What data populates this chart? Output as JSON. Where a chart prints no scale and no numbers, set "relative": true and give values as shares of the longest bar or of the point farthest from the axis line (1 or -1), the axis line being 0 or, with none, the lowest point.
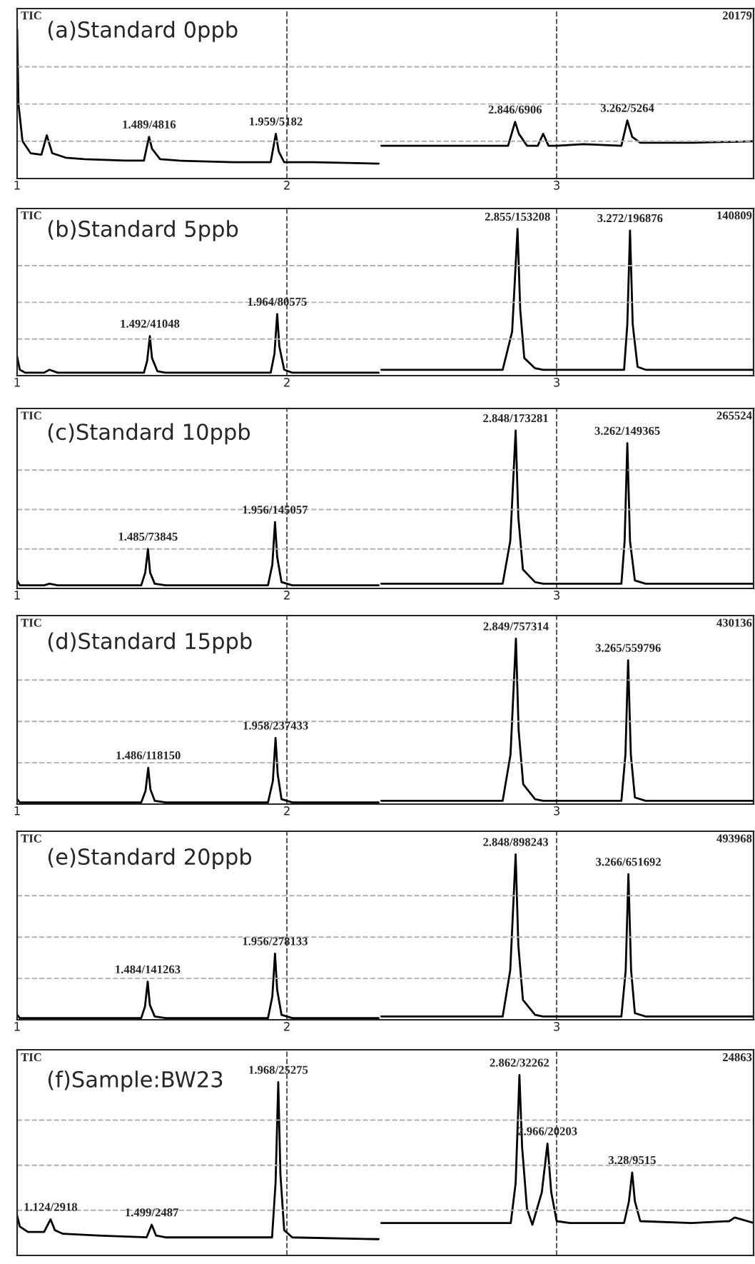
{
  "chart_data": [
    {
      "type": "line",
      "relative": true,
      "title": "(a)Standard 0ppb",
      "xlim": [
        1,
        3.73
      ],
      "xticks": [
        1,
        2,
        3
      ],
      "grid": "x",
      "line_style": "solid",
      "ref_lines": [
        {
          "axis": "y",
          "value": 0.25,
          "color": "#b0b0b0",
          "line_style": "dashed"
        },
        {
          "axis": "y",
          "value": 0.5,
          "color": "#b0b0b0",
          "line_style": "dashed"
        },
        {
          "axis": "y",
          "value": 0.75,
          "color": "#b0b0b0",
          "line_style": "dashed"
        }
      ],
      "annotations": [
        "TIC",
        "20179",
        {
          "text": "1.489/4816",
          "x": 1.489,
          "y": 0.28
        },
        {
          "text": "1.959/5182",
          "x": 1.959,
          "y": 0.3
        },
        {
          "text": "2.846/6906",
          "x": 2.846,
          "y": 0.38
        },
        {
          "text": "3.262/5264",
          "x": 3.262,
          "y": 0.39
        }
      ],
      "series": [
        {
          "color": "#000000",
          "x": [
            1.0,
            1.005,
            1.02,
            1.05,
            1.09,
            1.11,
            1.13,
            1.18,
            1.25,
            1.4,
            1.47,
            1.489,
            1.5,
            1.53,
            1.6,
            1.8,
            1.94,
            1.959,
            1.97,
            1.99,
            2.1,
            2.34,
            2.345,
            2.35,
            2.5,
            2.7,
            2.82,
            2.846,
            2.86,
            2.89,
            2.93,
            2.95,
            2.97,
            3.0,
            3.1,
            3.24,
            3.262,
            3.28,
            3.31,
            3.5,
            3.73
          ],
          "values": [
            1.0,
            0.5,
            0.25,
            0.17,
            0.16,
            0.29,
            0.17,
            0.14,
            0.13,
            0.12,
            0.12,
            0.28,
            0.2,
            0.13,
            0.12,
            0.11,
            0.11,
            0.3,
            0.18,
            0.11,
            0.11,
            0.1,
            null,
            0.22,
            0.22,
            0.22,
            0.22,
            0.38,
            0.3,
            0.22,
            0.22,
            0.3,
            0.22,
            0.22,
            0.23,
            0.22,
            0.39,
            0.28,
            0.24,
            0.24,
            0.25
          ]
        }
      ]
    },
    {
      "type": "line",
      "relative": true,
      "title": "(b)Standard 5ppb",
      "xlim": [
        1,
        3.73
      ],
      "xticks": [
        1,
        2,
        3
      ],
      "grid": "x",
      "line_style": "solid",
      "ref_lines": [
        {
          "axis": "y",
          "value": 0.25,
          "color": "#b0b0b0",
          "line_style": "dashed"
        },
        {
          "axis": "y",
          "value": 0.5,
          "color": "#b0b0b0",
          "line_style": "dashed"
        },
        {
          "axis": "y",
          "value": 0.75,
          "color": "#b0b0b0",
          "line_style": "dashed"
        }
      ],
      "annotations": [
        "TIC",
        "140809",
        {
          "text": "1.492/41048",
          "x": 1.492,
          "y": 0.27
        },
        {
          "text": "1.964/80575",
          "x": 1.964,
          "y": 0.42
        },
        {
          "text": "2.855/153208",
          "x": 2.855,
          "y": 1.0
        },
        {
          "text": "3.272/196876",
          "x": 3.272,
          "y": 0.99
        }
      ],
      "series": [
        {
          "color": "#000000",
          "x": [
            1.0,
            1.01,
            1.03,
            1.1,
            1.12,
            1.15,
            1.47,
            1.482,
            1.492,
            1.5,
            1.52,
            1.55,
            1.94,
            1.954,
            1.964,
            1.972,
            1.99,
            2.02,
            2.34,
            2.345,
            2.35,
            2.8,
            2.835,
            2.855,
            2.865,
            2.88,
            2.92,
            2.95,
            3.25,
            3.262,
            3.272,
            3.282,
            3.3,
            3.33,
            3.73
          ],
          "values": [
            0.13,
            0.04,
            0.02,
            0.02,
            0.04,
            0.02,
            0.02,
            0.1,
            0.27,
            0.12,
            0.03,
            0.02,
            0.02,
            0.15,
            0.42,
            0.2,
            0.04,
            0.02,
            0.02,
            null,
            0.04,
            0.04,
            0.3,
            1.0,
            0.45,
            0.12,
            0.05,
            0.04,
            0.04,
            0.35,
            0.99,
            0.35,
            0.06,
            0.04,
            0.04
          ]
        }
      ]
    },
    {
      "type": "line",
      "relative": true,
      "title": "(c)Standard 10ppb",
      "xlim": [
        1,
        3.73
      ],
      "xticks": [
        1,
        2,
        3
      ],
      "grid": "x",
      "line_style": "solid",
      "ref_lines": [
        {
          "axis": "y",
          "value": 0.25,
          "color": "#b0b0b0",
          "line_style": "dashed"
        },
        {
          "axis": "y",
          "value": 0.5,
          "color": "#b0b0b0",
          "line_style": "dashed"
        },
        {
          "axis": "y",
          "value": 0.75,
          "color": "#b0b0b0",
          "line_style": "dashed"
        }
      ],
      "annotations": [
        "TIC",
        "265524",
        {
          "text": "1.485/73845",
          "x": 1.485,
          "y": 0.25
        },
        {
          "text": "1.956/145057",
          "x": 1.956,
          "y": 0.42
        },
        {
          "text": "2.848/173281",
          "x": 2.848,
          "y": 1.0
        },
        {
          "text": "3.262/149365",
          "x": 3.262,
          "y": 0.92
        }
      ],
      "series": [
        {
          "color": "#000000",
          "x": [
            1.0,
            1.01,
            1.03,
            1.1,
            1.12,
            1.15,
            1.46,
            1.475,
            1.485,
            1.493,
            1.51,
            1.55,
            1.93,
            1.946,
            1.956,
            1.964,
            1.98,
            2.02,
            2.34,
            2.345,
            2.35,
            2.8,
            2.828,
            2.848,
            2.858,
            2.875,
            2.92,
            2.95,
            3.24,
            3.252,
            3.262,
            3.272,
            3.29,
            3.33,
            3.73
          ],
          "values": [
            0.05,
            0.02,
            0.02,
            0.02,
            0.03,
            0.02,
            0.02,
            0.1,
            0.25,
            0.1,
            0.03,
            0.02,
            0.02,
            0.15,
            0.42,
            0.2,
            0.04,
            0.02,
            0.02,
            null,
            0.03,
            0.03,
            0.3,
            1.0,
            0.45,
            0.12,
            0.04,
            0.03,
            0.03,
            0.3,
            0.92,
            0.3,
            0.05,
            0.03,
            0.03
          ]
        }
      ]
    },
    {
      "type": "line",
      "relative": true,
      "title": "(d)Standard 15ppb",
      "xlim": [
        1,
        3.73
      ],
      "xticks": [
        1,
        2,
        3
      ],
      "grid": "x",
      "line_style": "solid",
      "ref_lines": [
        {
          "axis": "y",
          "value": 0.25,
          "color": "#b0b0b0",
          "line_style": "dashed"
        },
        {
          "axis": "y",
          "value": 0.5,
          "color": "#b0b0b0",
          "line_style": "dashed"
        },
        {
          "axis": "y",
          "value": 0.75,
          "color": "#b0b0b0",
          "line_style": "dashed"
        }
      ],
      "annotations": [
        "TIC",
        "430136",
        {
          "text": "1.486/118150",
          "x": 1.486,
          "y": 0.22
        },
        {
          "text": "1.958/237433",
          "x": 1.958,
          "y": 0.4
        },
        {
          "text": "2.849/757314",
          "x": 2.849,
          "y": 1.0
        },
        {
          "text": "3.265/559796",
          "x": 3.265,
          "y": 0.87
        }
      ],
      "series": [
        {
          "color": "#000000",
          "x": [
            1.0,
            1.01,
            1.03,
            1.1,
            1.12,
            1.15,
            1.46,
            1.476,
            1.486,
            1.494,
            1.51,
            1.55,
            1.93,
            1.948,
            1.958,
            1.966,
            1.98,
            2.02,
            2.34,
            2.345,
            2.35,
            2.8,
            2.829,
            2.849,
            2.859,
            2.876,
            2.92,
            2.95,
            3.24,
            3.255,
            3.265,
            3.275,
            3.29,
            3.33,
            3.73
          ],
          "values": [
            0.03,
            0.01,
            0.01,
            0.01,
            0.01,
            0.01,
            0.01,
            0.08,
            0.22,
            0.09,
            0.02,
            0.01,
            0.01,
            0.14,
            0.4,
            0.18,
            0.03,
            0.01,
            0.01,
            null,
            0.02,
            0.02,
            0.3,
            1.0,
            0.45,
            0.12,
            0.03,
            0.02,
            0.02,
            0.3,
            0.87,
            0.3,
            0.04,
            0.02,
            0.02
          ]
        }
      ]
    },
    {
      "type": "line",
      "relative": true,
      "title": "(e)Standard 20ppb",
      "xlim": [
        1,
        3.73
      ],
      "xticks": [
        1,
        2,
        3
      ],
      "grid": "x",
      "line_style": "solid",
      "ref_lines": [
        {
          "axis": "y",
          "value": 0.25,
          "color": "#b0b0b0",
          "line_style": "dashed"
        },
        {
          "axis": "y",
          "value": 0.5,
          "color": "#b0b0b0",
          "line_style": "dashed"
        },
        {
          "axis": "y",
          "value": 0.75,
          "color": "#b0b0b0",
          "line_style": "dashed"
        }
      ],
      "annotations": [
        "TIC",
        "493968",
        {
          "text": "1.484/141263",
          "x": 1.484,
          "y": 0.23
        },
        {
          "text": "1.956/278133",
          "x": 1.956,
          "y": 0.4
        },
        {
          "text": "2.848/898243",
          "x": 2.848,
          "y": 1.0
        },
        {
          "text": "3.266/651692",
          "x": 3.266,
          "y": 0.88
        }
      ],
      "series": [
        {
          "color": "#000000",
          "x": [
            1.0,
            1.01,
            1.03,
            1.1,
            1.12,
            1.15,
            1.46,
            1.474,
            1.484,
            1.492,
            1.51,
            1.55,
            1.93,
            1.946,
            1.956,
            1.964,
            1.98,
            2.02,
            2.34,
            2.345,
            2.35,
            2.8,
            2.828,
            2.848,
            2.858,
            2.875,
            2.92,
            2.95,
            3.24,
            3.256,
            3.266,
            3.276,
            3.29,
            3.33,
            3.73
          ],
          "values": [
            0.03,
            0.01,
            0.01,
            0.01,
            0.01,
            0.01,
            0.01,
            0.08,
            0.23,
            0.09,
            0.02,
            0.01,
            0.01,
            0.14,
            0.4,
            0.18,
            0.03,
            0.01,
            0.01,
            null,
            0.02,
            0.02,
            0.3,
            1.0,
            0.45,
            0.12,
            0.03,
            0.02,
            0.02,
            0.3,
            0.88,
            0.3,
            0.04,
            0.02,
            0.02
          ]
        }
      ]
    },
    {
      "type": "line",
      "relative": true,
      "title": "(f)Sample:BW23",
      "xlim": [
        1,
        3.73
      ],
      "xticks": [
        1,
        2,
        3
      ],
      "tick_labels": false,
      "grid": "x",
      "line_style": "solid",
      "ref_lines": [
        {
          "axis": "y",
          "value": 0.25,
          "color": "#b0b0b0",
          "line_style": "dashed"
        },
        {
          "axis": "y",
          "value": 0.5,
          "color": "#b0b0b0",
          "line_style": "dashed"
        },
        {
          "axis": "y",
          "value": 0.75,
          "color": "#b0b0b0",
          "line_style": "dashed"
        }
      ],
      "annotations": [
        "TIC",
        "24863",
        {
          "text": "1.124/2918",
          "x": 1.124,
          "y": 0.2
        },
        {
          "text": "1.499/2487",
          "x": 1.499,
          "y": 0.17
        },
        {
          "text": "1.968/25275",
          "x": 1.968,
          "y": 0.96
        },
        {
          "text": "2.862/32262",
          "x": 2.862,
          "y": 1.0
        },
        {
          "text": "2.966/20203",
          "x": 2.966,
          "y": 0.62
        },
        {
          "text": "3.28/9515",
          "x": 3.28,
          "y": 0.46
        }
      ],
      "series": [
        {
          "color": "#000000",
          "x": [
            1.0,
            1.01,
            1.04,
            1.1,
            1.124,
            1.14,
            1.17,
            1.3,
            1.48,
            1.499,
            1.515,
            1.55,
            1.8,
            1.945,
            1.958,
            1.968,
            1.976,
            1.99,
            2.02,
            2.34,
            2.345,
            2.35,
            2.6,
            2.83,
            2.848,
            2.862,
            2.872,
            2.89,
            2.91,
            2.945,
            2.966,
            2.98,
            3.0,
            3.05,
            3.25,
            3.268,
            3.28,
            3.29,
            3.31,
            3.5,
            3.64,
            3.66,
            3.73
          ],
          "values": [
            0.22,
            0.16,
            0.13,
            0.13,
            0.2,
            0.14,
            0.12,
            0.11,
            0.1,
            0.17,
            0.11,
            0.1,
            0.1,
            0.1,
            0.4,
            0.96,
            0.45,
            0.14,
            0.1,
            0.09,
            null,
            0.18,
            0.18,
            0.18,
            0.4,
            1.0,
            0.6,
            0.26,
            0.17,
            0.35,
            0.62,
            0.35,
            0.19,
            0.18,
            0.18,
            0.3,
            0.46,
            0.3,
            0.19,
            0.18,
            0.19,
            0.21,
            0.18
          ]
        }
      ]
    }
  ]
}
